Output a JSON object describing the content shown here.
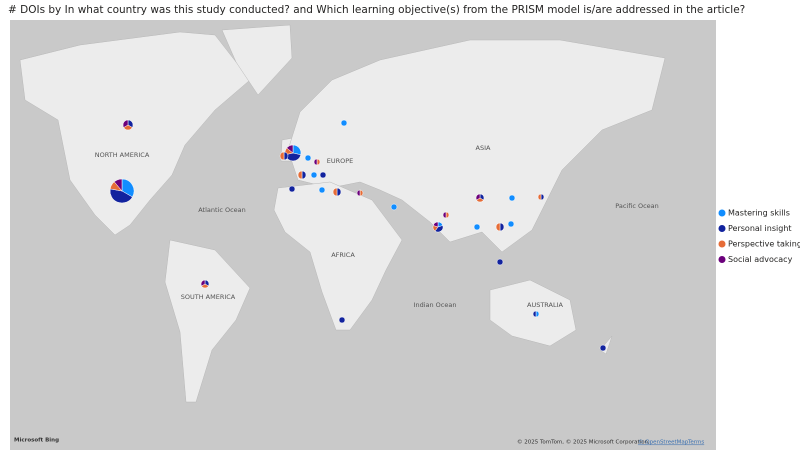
{
  "title": "# DOIs by In what country was this study conducted? and Which learning objective(s) from the PRISM model is/are addressed in the article?",
  "map": {
    "labels": [
      "NORTH AMERICA",
      "EUROPE",
      "ASIA",
      "Atlantic Ocean",
      "AFRICA",
      "Pacific Ocean",
      "SOUTH AMERICA",
      "Indian Ocean",
      "AUSTRALIA"
    ],
    "attribution": {
      "brand": "Microsoft Bing",
      "copyright": "© 2025 TomTom, © 2025 Microsoft Corporation,",
      "osm": "© OpenStreetMap",
      "terms": "Terms"
    }
  },
  "chart_data": {
    "type": "pie-map",
    "series": [
      {
        "name": "Mastering skills",
        "color": "#118dff"
      },
      {
        "name": "Personal insight",
        "color": "#12239e"
      },
      {
        "name": "Perspective taking",
        "color": "#e66c37"
      },
      {
        "name": "Social advocacy",
        "color": "#6b007b"
      }
    ],
    "pies": [
      [
        3,
        4,
        1,
        1
      ],
      [
        0,
        1,
        1,
        1
      ],
      [
        2,
        3,
        1,
        1
      ],
      [
        0,
        1,
        1,
        0
      ],
      [
        1,
        0,
        0,
        0
      ],
      [
        0,
        0,
        1,
        1
      ],
      [
        0,
        1,
        1,
        0
      ],
      [
        1,
        0,
        0,
        0
      ],
      [
        0,
        1,
        0,
        0
      ],
      [
        0,
        1,
        0,
        0
      ],
      [
        1,
        0,
        0,
        0
      ],
      [
        0,
        1,
        1,
        0
      ],
      [
        0,
        0,
        1,
        1
      ],
      [
        1,
        0,
        0,
        0
      ],
      [
        1,
        0,
        0,
        0
      ],
      [
        1,
        2,
        1,
        1
      ],
      [
        0,
        0,
        1,
        1
      ],
      [
        0,
        1,
        1,
        1
      ],
      [
        1,
        0,
        0,
        0
      ],
      [
        0,
        1,
        1,
        0
      ],
      [
        1,
        0,
        0,
        0
      ],
      [
        0,
        1,
        1,
        0
      ],
      [
        1,
        0,
        0,
        0
      ],
      [
        0,
        1,
        0,
        0
      ],
      [
        0,
        1,
        1,
        1
      ],
      [
        0,
        1,
        0,
        0
      ],
      [
        1,
        1,
        0,
        0
      ],
      [
        0,
        1,
        0,
        0
      ]
    ],
    "legend": "right"
  }
}
